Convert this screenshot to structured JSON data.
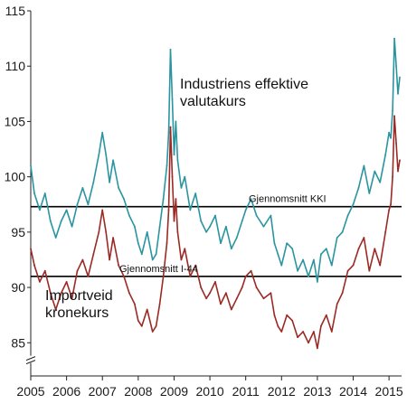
{
  "chart_data": {
    "type": "line",
    "title": "",
    "xlabel": "",
    "ylabel": "",
    "ylim": [
      82,
      115
    ],
    "y_ticks": [
      85,
      90,
      95,
      100,
      105,
      110,
      115
    ],
    "y_axis_break": true,
    "x_ticks": [
      "2005",
      "2006",
      "2007",
      "2008",
      "2009",
      "2010",
      "2011",
      "2012",
      "2013",
      "2014",
      "2015"
    ],
    "xlim": [
      2005.0,
      2015.35
    ],
    "grid": false,
    "legend": "none",
    "annotations": {
      "kki_series": "Industriens effektive\nvalutakurs",
      "i44_series": "Importveid\nkronekurs",
      "kki_avg": "Gjennomsnitt KKI",
      "i44_avg": "Gjennomsnitt I-44"
    },
    "reference_lines": [
      {
        "name": "Gjennomsnitt KKI",
        "value": 97.3
      },
      {
        "name": "Gjennomsnitt I-44",
        "value": 91.0
      }
    ],
    "series": [
      {
        "key": "kki",
        "color": "#2a95a0",
        "x": [
          2005.0,
          2005.1,
          2005.25,
          2005.4,
          2005.55,
          2005.7,
          2005.85,
          2006.0,
          2006.15,
          2006.3,
          2006.45,
          2006.6,
          2006.75,
          2006.9,
          2007.0,
          2007.1,
          2007.2,
          2007.3,
          2007.45,
          2007.6,
          2007.75,
          2007.9,
          2008.0,
          2008.1,
          2008.25,
          2008.4,
          2008.5,
          2008.6,
          2008.7,
          2008.8,
          2008.85,
          2008.9,
          2008.95,
          2009.0,
          2009.05,
          2009.1,
          2009.2,
          2009.3,
          2009.45,
          2009.6,
          2009.75,
          2009.9,
          2010.0,
          2010.15,
          2010.3,
          2010.45,
          2010.6,
          2010.75,
          2010.9,
          2011.0,
          2011.15,
          2011.3,
          2011.5,
          2011.7,
          2011.8,
          2011.9,
          2012.0,
          2012.15,
          2012.3,
          2012.45,
          2012.6,
          2012.75,
          2012.9,
          2013.0,
          2013.1,
          2013.25,
          2013.4,
          2013.55,
          2013.7,
          2013.85,
          2014.0,
          2014.15,
          2014.3,
          2014.45,
          2014.6,
          2014.75,
          2014.9,
          2015.0,
          2015.05,
          2015.1,
          2015.15,
          2015.2,
          2015.25,
          2015.3
        ],
        "values": [
          101.0,
          98.5,
          97.0,
          98.5,
          96.0,
          94.5,
          96.0,
          97.0,
          95.5,
          97.5,
          99.0,
          97.5,
          99.5,
          102.0,
          104.0,
          102.0,
          99.5,
          101.5,
          99.0,
          98.0,
          96.5,
          95.5,
          94.0,
          93.0,
          95.0,
          92.5,
          93.0,
          95.5,
          98.0,
          101.0,
          104.0,
          111.5,
          107.0,
          102.0,
          105.0,
          101.5,
          99.0,
          100.0,
          97.0,
          98.5,
          96.0,
          95.0,
          95.5,
          96.5,
          94.0,
          95.5,
          93.5,
          94.5,
          96.0,
          97.0,
          98.0,
          96.5,
          95.5,
          96.5,
          94.0,
          93.0,
          92.0,
          94.0,
          93.5,
          91.5,
          92.5,
          91.0,
          92.5,
          90.5,
          93.0,
          93.5,
          92.0,
          94.5,
          95.0,
          96.5,
          97.5,
          99.0,
          101.0,
          98.5,
          100.5,
          99.5,
          102.0,
          104.0,
          103.5,
          106.0,
          112.5,
          110.0,
          107.5,
          109.0
        ]
      },
      {
        "key": "i44",
        "color": "#9b2a24",
        "x": [
          2005.0,
          2005.1,
          2005.25,
          2005.4,
          2005.55,
          2005.7,
          2005.85,
          2006.0,
          2006.15,
          2006.3,
          2006.45,
          2006.6,
          2006.75,
          2006.9,
          2007.0,
          2007.1,
          2007.2,
          2007.3,
          2007.45,
          2007.6,
          2007.75,
          2007.9,
          2008.0,
          2008.1,
          2008.25,
          2008.4,
          2008.5,
          2008.6,
          2008.7,
          2008.8,
          2008.85,
          2008.9,
          2008.95,
          2009.0,
          2009.05,
          2009.1,
          2009.2,
          2009.3,
          2009.45,
          2009.6,
          2009.75,
          2009.9,
          2010.0,
          2010.15,
          2010.3,
          2010.45,
          2010.6,
          2010.75,
          2010.9,
          2011.0,
          2011.15,
          2011.3,
          2011.5,
          2011.7,
          2011.8,
          2011.9,
          2012.0,
          2012.15,
          2012.3,
          2012.45,
          2012.6,
          2012.75,
          2012.9,
          2013.0,
          2013.1,
          2013.25,
          2013.4,
          2013.55,
          2013.7,
          2013.85,
          2014.0,
          2014.15,
          2014.3,
          2014.45,
          2014.6,
          2014.75,
          2014.9,
          2015.0,
          2015.05,
          2015.1,
          2015.15,
          2015.2,
          2015.25,
          2015.3
        ],
        "values": [
          93.5,
          92.0,
          90.5,
          91.5,
          89.5,
          88.0,
          89.5,
          90.5,
          89.0,
          91.5,
          92.5,
          91.0,
          93.0,
          95.0,
          97.0,
          95.0,
          92.5,
          94.5,
          92.0,
          91.0,
          89.5,
          88.5,
          87.0,
          86.5,
          88.0,
          86.0,
          86.5,
          88.5,
          91.0,
          94.0,
          97.0,
          104.5,
          100.0,
          96.0,
          98.0,
          95.0,
          92.5,
          93.5,
          91.0,
          92.0,
          90.0,
          89.0,
          89.5,
          90.5,
          88.5,
          89.5,
          88.0,
          89.0,
          90.0,
          91.0,
          91.5,
          90.0,
          89.0,
          89.5,
          87.5,
          86.5,
          86.0,
          87.5,
          87.0,
          85.5,
          86.0,
          85.0,
          86.0,
          84.5,
          86.5,
          87.5,
          86.0,
          88.5,
          89.5,
          91.5,
          92.0,
          93.5,
          94.5,
          91.5,
          93.5,
          92.0,
          95.0,
          97.0,
          97.5,
          100.0,
          105.5,
          103.0,
          100.5,
          101.5
        ]
      }
    ]
  }
}
